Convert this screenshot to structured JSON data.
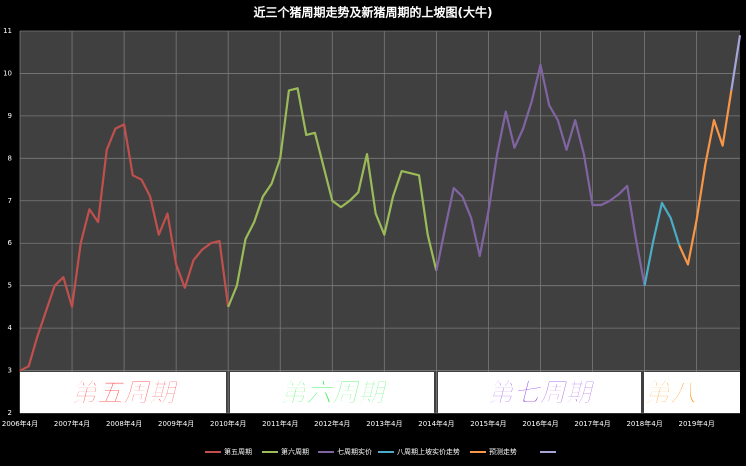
{
  "chart_data": {
    "type": "line",
    "title": "近三个猪周期走势及新猪周期的上坡图(大牛)",
    "categories": [
      "2006年4月",
      null,
      null,
      null,
      null,
      null,
      "2007年4月",
      null,
      null,
      null,
      null,
      null,
      "2008年4月",
      null,
      null,
      null,
      null,
      null,
      "2009年4月",
      null,
      null,
      null,
      null,
      null,
      "2010年4月",
      null,
      null,
      null,
      null,
      null,
      "2011年4月",
      null,
      null,
      null,
      null,
      null,
      "2012年4月",
      null,
      null,
      null,
      null,
      null,
      "2013年4月",
      null,
      null,
      null,
      null,
      null,
      "2014年4月",
      null,
      null,
      null,
      null,
      null,
      "2015年4月",
      null,
      null,
      null,
      null,
      null,
      "2016年4月",
      null,
      null,
      null,
      null,
      null,
      "2017年4月",
      null,
      null,
      null,
      null,
      null,
      "2018年4月",
      null,
      null,
      null,
      null,
      null,
      "2019年4月",
      null,
      null,
      null,
      null,
      null
    ],
    "series": [
      {
        "name": "第五周期",
        "color": "#c0504d",
        "values": [
          3.0,
          3.1,
          3.8,
          4.4,
          5.0,
          5.2,
          4.5,
          6.0,
          6.8,
          6.5,
          8.2,
          8.7,
          8.8,
          7.6,
          7.5,
          7.1,
          6.2,
          6.7,
          5.5,
          4.95,
          5.6,
          5.85,
          6.0,
          6.05,
          4.5,
          null,
          null,
          null,
          null,
          null,
          null,
          null,
          null,
          null,
          null,
          null,
          null,
          null,
          null,
          null,
          null,
          null,
          null,
          null,
          null,
          null,
          null,
          null,
          null,
          null,
          null,
          null,
          null,
          null,
          null,
          null,
          null,
          null,
          null,
          null,
          null,
          null,
          null,
          null,
          null,
          null,
          null,
          null,
          null,
          null,
          null,
          null,
          null,
          null,
          null,
          null,
          null,
          null,
          null,
          null,
          null,
          null,
          null,
          null
        ]
      },
      {
        "name": "第六周期",
        "color": "#9bbb59",
        "values": [
          null,
          null,
          null,
          null,
          null,
          null,
          null,
          null,
          null,
          null,
          null,
          null,
          null,
          null,
          null,
          null,
          null,
          null,
          null,
          null,
          null,
          null,
          null,
          null,
          4.5,
          5.0,
          6.1,
          6.5,
          7.1,
          7.4,
          8.0,
          9.6,
          9.65,
          8.55,
          8.6,
          7.8,
          7.0,
          6.85,
          7.0,
          7.2,
          8.1,
          6.7,
          6.2,
          7.1,
          7.7,
          7.65,
          7.6,
          6.2,
          5.35,
          null,
          null,
          null,
          null,
          null,
          null,
          null,
          null,
          null,
          null,
          null,
          null,
          null,
          null,
          null,
          null,
          null,
          null,
          null,
          null,
          null,
          null,
          null,
          null,
          null,
          null,
          null,
          null,
          null,
          null,
          null,
          null,
          null,
          null,
          null
        ]
      },
      {
        "name": "七周期实价",
        "color": "#8064a2",
        "values": [
          null,
          null,
          null,
          null,
          null,
          null,
          null,
          null,
          null,
          null,
          null,
          null,
          null,
          null,
          null,
          null,
          null,
          null,
          null,
          null,
          null,
          null,
          null,
          null,
          null,
          null,
          null,
          null,
          null,
          null,
          null,
          null,
          null,
          null,
          null,
          null,
          null,
          null,
          null,
          null,
          null,
          null,
          null,
          null,
          null,
          null,
          null,
          null,
          5.35,
          6.35,
          7.3,
          7.1,
          6.6,
          5.7,
          6.75,
          8.1,
          9.1,
          8.25,
          8.7,
          9.35,
          10.2,
          9.25,
          8.9,
          8.2,
          8.9,
          8.1,
          6.9,
          6.9,
          7.0,
          7.15,
          7.35,
          6.1,
          5.0,
          null,
          null,
          null,
          null,
          null,
          null,
          null,
          null,
          null,
          null,
          null
        ]
      },
      {
        "name": "八周期上坡实价走势",
        "color": "#4bacc6",
        "values": [
          null,
          null,
          null,
          null,
          null,
          null,
          null,
          null,
          null,
          null,
          null,
          null,
          null,
          null,
          null,
          null,
          null,
          null,
          null,
          null,
          null,
          null,
          null,
          null,
          null,
          null,
          null,
          null,
          null,
          null,
          null,
          null,
          null,
          null,
          null,
          null,
          null,
          null,
          null,
          null,
          null,
          null,
          null,
          null,
          null,
          null,
          null,
          null,
          null,
          null,
          null,
          null,
          null,
          null,
          null,
          null,
          null,
          null,
          null,
          null,
          null,
          null,
          null,
          null,
          null,
          null,
          null,
          null,
          null,
          null,
          null,
          null,
          5.0,
          6.05,
          6.95,
          6.6,
          5.95,
          null,
          null,
          null,
          null,
          null,
          null,
          null
        ]
      },
      {
        "name": "预测走势",
        "color": "#f79646",
        "values": [
          null,
          null,
          null,
          null,
          null,
          null,
          null,
          null,
          null,
          null,
          null,
          null,
          null,
          null,
          null,
          null,
          null,
          null,
          null,
          null,
          null,
          null,
          null,
          null,
          null,
          null,
          null,
          null,
          null,
          null,
          null,
          null,
          null,
          null,
          null,
          null,
          null,
          null,
          null,
          null,
          null,
          null,
          null,
          null,
          null,
          null,
          null,
          null,
          null,
          null,
          null,
          null,
          null,
          null,
          null,
          null,
          null,
          null,
          null,
          null,
          null,
          null,
          null,
          null,
          null,
          null,
          null,
          null,
          null,
          null,
          null,
          null,
          null,
          null,
          null,
          null,
          5.95,
          5.5,
          6.55,
          7.85,
          8.9,
          8.3,
          9.6,
          null
        ]
      },
      {
        "color": "#a5a5d8",
        "values": [
          null,
          null,
          null,
          null,
          null,
          null,
          null,
          null,
          null,
          null,
          null,
          null,
          null,
          null,
          null,
          null,
          null,
          null,
          null,
          null,
          null,
          null,
          null,
          null,
          null,
          null,
          null,
          null,
          null,
          null,
          null,
          null,
          null,
          null,
          null,
          null,
          null,
          null,
          null,
          null,
          null,
          null,
          null,
          null,
          null,
          null,
          null,
          null,
          null,
          null,
          null,
          null,
          null,
          null,
          null,
          null,
          null,
          null,
          null,
          null,
          null,
          null,
          null,
          null,
          null,
          null,
          null,
          null,
          null,
          null,
          null,
          null,
          null,
          null,
          null,
          null,
          null,
          null,
          null,
          null,
          null,
          null,
          9.6,
          10.9
        ]
      }
    ],
    "ylim": [
      2,
      11
    ],
    "yticks": [
      2,
      3,
      4,
      5,
      6,
      7,
      8,
      9,
      10,
      11
    ],
    "grid": true,
    "annotations": [
      {
        "text": "第五周期",
        "color": "#ff1010"
      },
      {
        "text": "第六周期",
        "color": "#22ee44"
      },
      {
        "text": "第七周期",
        "color": "#8a2be2"
      },
      {
        "text": "第八",
        "color": "#ff8c00"
      }
    ]
  }
}
